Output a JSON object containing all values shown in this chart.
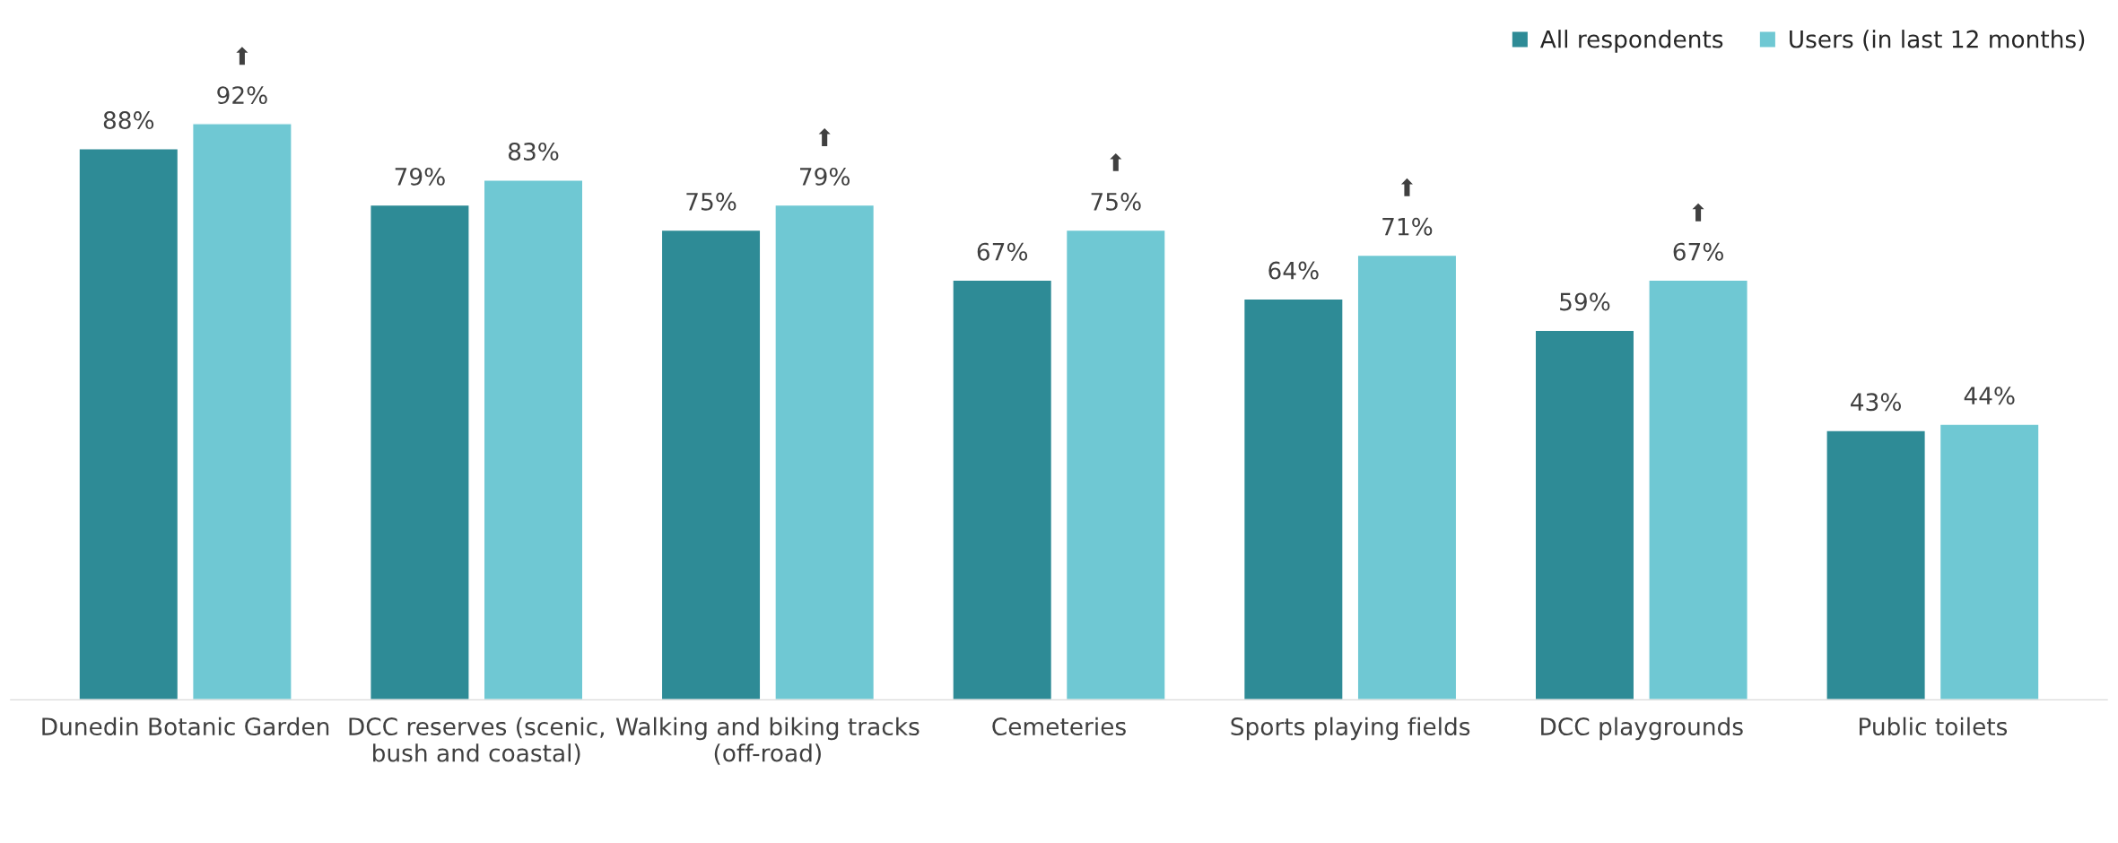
{
  "chart_data": {
    "type": "bar",
    "categories": [
      "Dunedin Botanic Garden",
      "DCC reserves (scenic,\nbush and coastal)",
      "Walking and biking tracks\n(off-road)",
      "Cemeteries",
      "Sports playing fields",
      "DCC playgrounds",
      "Public toilets"
    ],
    "series": [
      {
        "name": "All respondents",
        "color": "#2e8b96",
        "values": [
          88,
          79,
          75,
          67,
          64,
          59,
          43
        ],
        "value_labels": [
          "88%",
          "79%",
          "75%",
          "67%",
          "64%",
          "59%",
          "43%"
        ]
      },
      {
        "name": "Users (in last 12 months)",
        "color": "#6fc8d3",
        "values": [
          92,
          83,
          79,
          75,
          71,
          67,
          44
        ],
        "value_labels": [
          "⬆\n92%",
          "83%",
          "⬆\n79%",
          "⬆\n75%",
          "⬆\n71%",
          "⬆\n67%",
          "44%"
        ]
      }
    ],
    "legend": "top right",
    "grid": false
  }
}
